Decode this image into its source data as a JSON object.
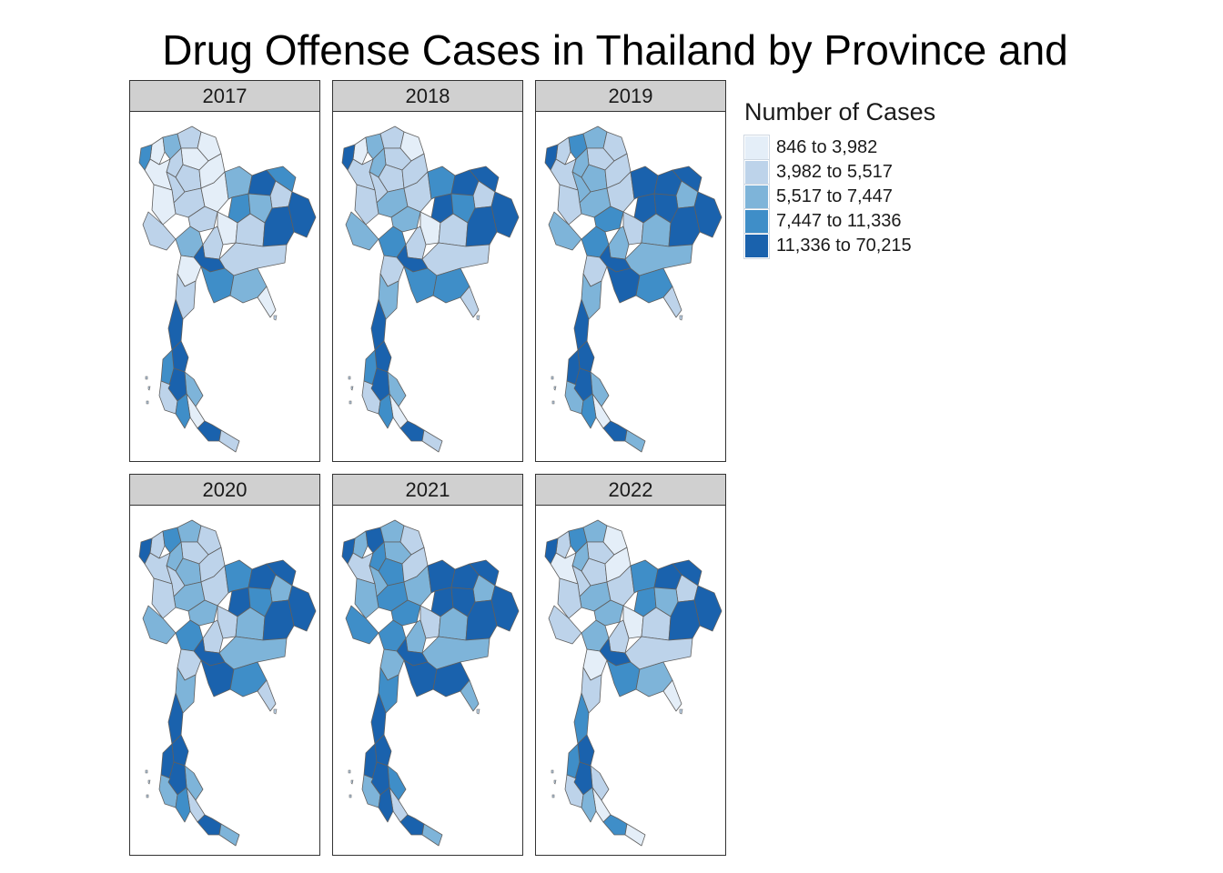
{
  "title": "Drug Offense Cases in Thailand by Province and",
  "legend": {
    "title": "Number of Cases",
    "items": [
      {
        "label": "846 to 3,982",
        "color": "#e4eef8"
      },
      {
        "label": "3,982 to 5,517",
        "color": "#bdd3ea"
      },
      {
        "label": "5,517 to 7,447",
        "color": "#7eb4d9"
      },
      {
        "label": "7,447 to 11,336",
        "color": "#3f8ec8"
      },
      {
        "label": "11,336 to 70,215",
        "color": "#1a62ad"
      }
    ]
  },
  "panels": [
    {
      "year": "2017",
      "classes": [
        0,
        2,
        1,
        0,
        0,
        1,
        0,
        1,
        3,
        1,
        0,
        1,
        0,
        0,
        1,
        2,
        4,
        3,
        1,
        4,
        3,
        2,
        0,
        1,
        4,
        1,
        1,
        2,
        4,
        0,
        3,
        1,
        2,
        0,
        1,
        4,
        4,
        3,
        2,
        4,
        1,
        0,
        3,
        4,
        1
      ]
    },
    {
      "year": "2018",
      "classes": [
        0,
        2,
        1,
        0,
        1,
        2,
        1,
        1,
        4,
        1,
        1,
        2,
        1,
        1,
        2,
        3,
        4,
        4,
        1,
        4,
        4,
        3,
        0,
        1,
        4,
        1,
        2,
        3,
        4,
        1,
        3,
        1,
        3,
        1,
        2,
        4,
        4,
        3,
        2,
        4,
        1,
        0,
        3,
        4,
        1
      ]
    },
    {
      "year": "2019",
      "classes": [
        1,
        3,
        2,
        1,
        1,
        2,
        1,
        2,
        4,
        2,
        1,
        2,
        1,
        1,
        3,
        4,
        4,
        4,
        2,
        4,
        4,
        4,
        1,
        2,
        4,
        2,
        2,
        3,
        4,
        1,
        4,
        2,
        3,
        1,
        2,
        4,
        4,
        4,
        2,
        4,
        2,
        0,
        3,
        4,
        2
      ]
    },
    {
      "year": "2020",
      "classes": [
        1,
        3,
        2,
        1,
        1,
        2,
        1,
        2,
        4,
        1,
        1,
        2,
        1,
        1,
        2,
        3,
        4,
        4,
        2,
        4,
        4,
        3,
        1,
        2,
        4,
        1,
        2,
        3,
        4,
        1,
        4,
        2,
        3,
        1,
        2,
        4,
        4,
        4,
        2,
        4,
        2,
        1,
        3,
        4,
        2
      ]
    },
    {
      "year": "2021",
      "classes": [
        2,
        4,
        2,
        1,
        2,
        3,
        1,
        3,
        4,
        2,
        1,
        3,
        2,
        2,
        3,
        4,
        4,
        4,
        2,
        4,
        4,
        4,
        1,
        2,
        4,
        2,
        3,
        3,
        4,
        2,
        4,
        2,
        4,
        2,
        3,
        4,
        4,
        4,
        3,
        4,
        2,
        1,
        4,
        4,
        2
      ]
    },
    {
      "year": "2022",
      "classes": [
        1,
        3,
        2,
        0,
        1,
        2,
        0,
        1,
        4,
        1,
        0,
        2,
        1,
        1,
        2,
        3,
        4,
        4,
        1,
        4,
        3,
        2,
        0,
        1,
        4,
        1,
        1,
        2,
        4,
        0,
        3,
        1,
        2,
        0,
        1,
        3,
        4,
        3,
        1,
        4,
        1,
        0,
        2,
        3,
        0
      ]
    }
  ]
}
